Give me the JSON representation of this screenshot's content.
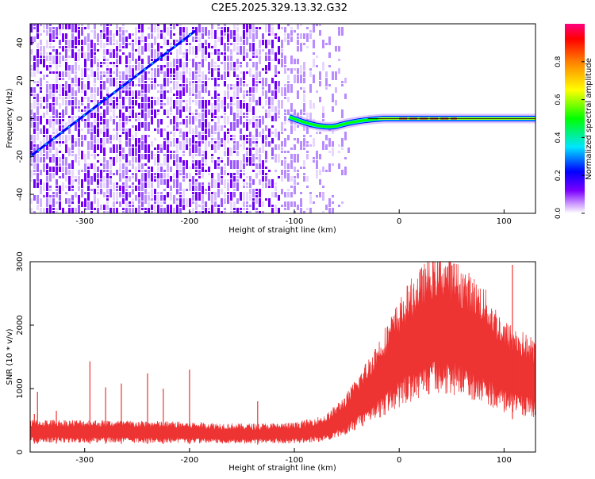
{
  "page_title": "C2E5.2025.329.13.32.G32",
  "chart_data": [
    {
      "type": "heatmap",
      "title": "C2E5.2025.329.13.32.G32",
      "xlabel": "Height of straight line (km)",
      "ylabel": "Frequency (Hz)",
      "xlim": [
        -352,
        130
      ],
      "ylim": [
        -50,
        50
      ],
      "xticks": [
        -300,
        -200,
        -100,
        0,
        100
      ],
      "xtick_labels": [
        "-300",
        "-200",
        "-100",
        "0",
        "100"
      ],
      "yticks": [
        -40,
        -20,
        0,
        20,
        40
      ],
      "ytick_labels": [
        "-40",
        "-20",
        "0",
        "20",
        "40"
      ],
      "colorbar": {
        "label": "Normalized spectral amplitude",
        "range": [
          0,
          1
        ],
        "ticks": [
          0.0,
          0.2,
          0.4,
          0.6,
          0.8
        ],
        "tick_labels": [
          "0.0",
          "0.2",
          "0.4",
          "0.6",
          "0.8"
        ],
        "colormap": [
          "#ffffff",
          "#7b00ff",
          "#0000ff",
          "#00e5ff",
          "#00ff00",
          "#ffff00",
          "#ff8000",
          "#ff0000",
          "#ff0080"
        ]
      },
      "features": {
        "noise_region_km": [
          -352,
          -55
        ],
        "diagonal_trace": {
          "x_start": -352,
          "y_start": -20,
          "x_end": -195,
          "y_end": 46
        },
        "carrier_line": {
          "x_start": -105,
          "x_end": 130,
          "frequency": 0
        },
        "carrier_dip": {
          "x": -60,
          "frequency": -4
        }
      }
    },
    {
      "type": "line",
      "xlabel": "Height of straight line (km)",
      "ylabel": "SNR (10 * v/v)",
      "xlim": [
        -352,
        130
      ],
      "ylim": [
        0,
        3000
      ],
      "xticks": [
        -300,
        -200,
        -100,
        0,
        100
      ],
      "xtick_labels": [
        "-300",
        "-200",
        "-100",
        "0",
        "100"
      ],
      "yticks": [
        0,
        1000,
        2000,
        3000
      ],
      "ytick_labels": [
        "0",
        "1000",
        "2000",
        "3000"
      ],
      "series": [
        {
          "name": "SNR",
          "color": "#ee3333",
          "envelope_x": [
            -352,
            -300,
            -250,
            -200,
            -150,
            -100,
            -70,
            -50,
            -30,
            -10,
            10,
            30,
            40,
            60,
            80,
            100,
            115,
            130
          ],
          "envelope_y": [
            330,
            330,
            320,
            310,
            290,
            300,
            380,
            600,
            950,
            1350,
            1750,
            2000,
            2060,
            1900,
            1700,
            1350,
            1250,
            1150
          ],
          "spikes": [
            {
              "x": -348,
              "y": 600
            },
            {
              "x": -345,
              "y": 950
            },
            {
              "x": -327,
              "y": 650
            },
            {
              "x": -295,
              "y": 1430
            },
            {
              "x": -280,
              "y": 1020
            },
            {
              "x": -265,
              "y": 1080
            },
            {
              "x": -240,
              "y": 1240
            },
            {
              "x": -225,
              "y": 1000
            },
            {
              "x": -200,
              "y": 1300
            },
            {
              "x": -135,
              "y": 800
            },
            {
              "x": 108,
              "y": 2950
            }
          ]
        }
      ]
    }
  ]
}
